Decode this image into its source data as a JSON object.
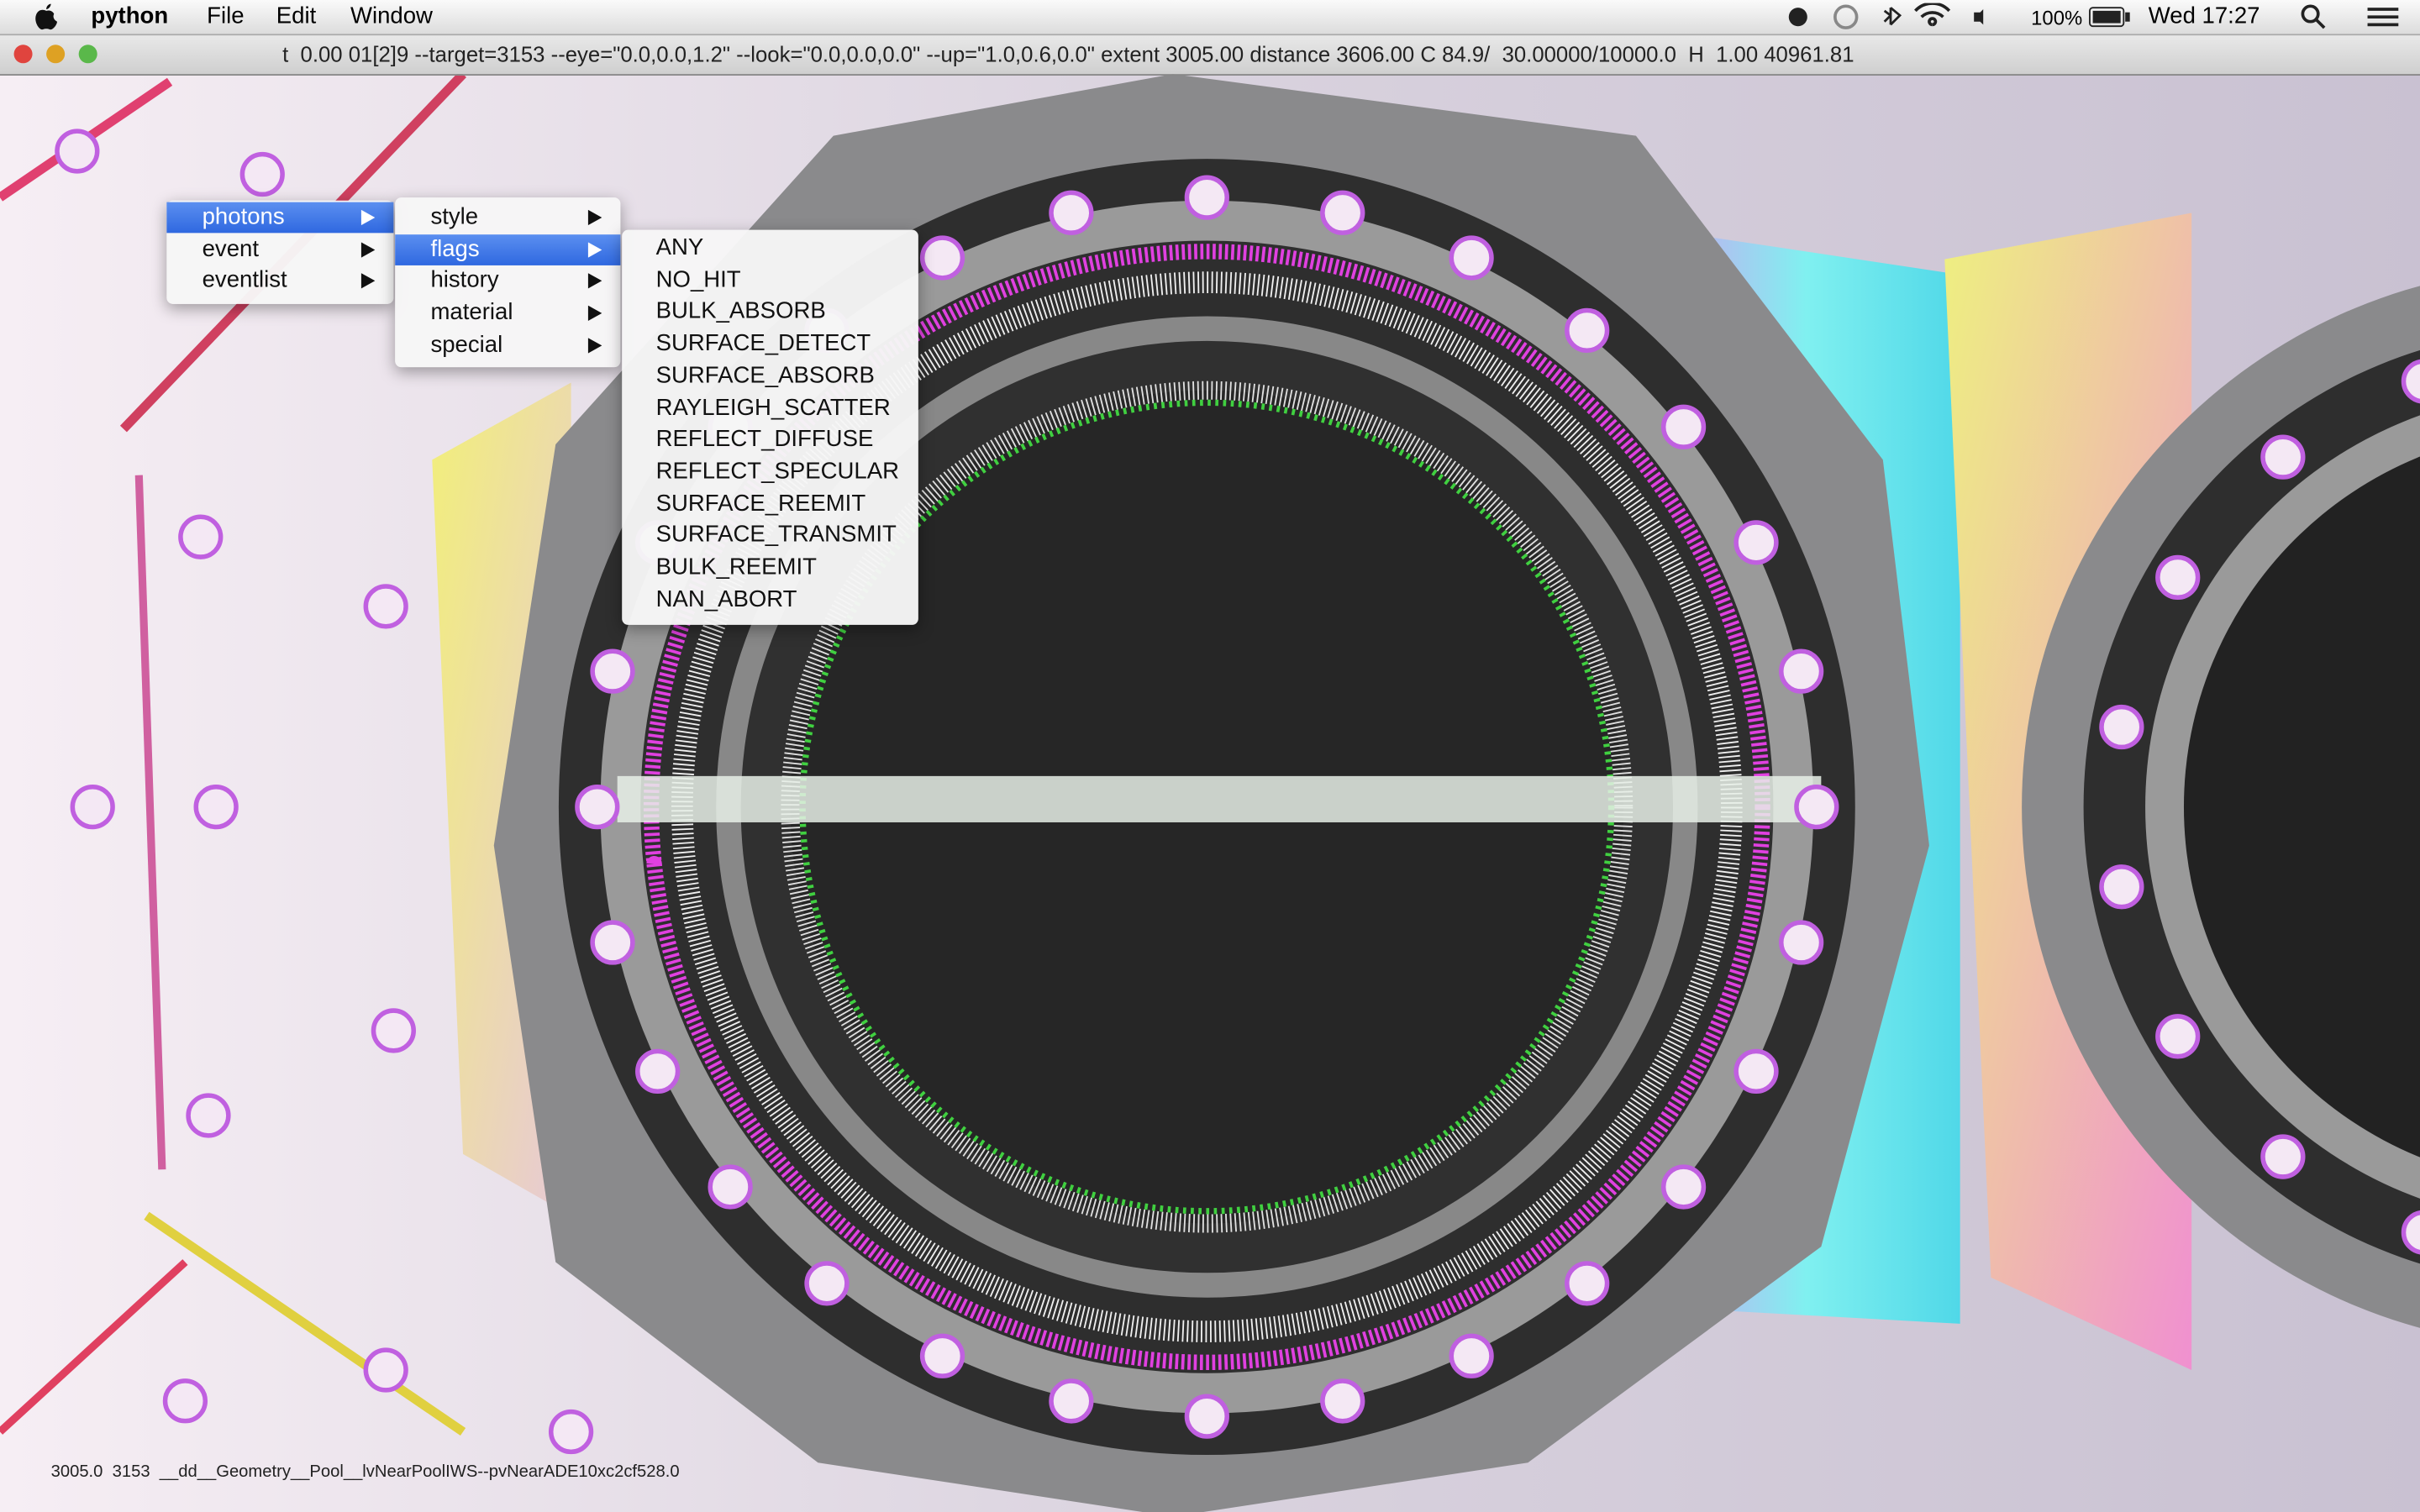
{
  "menubar": {
    "app": "python",
    "menus": [
      "File",
      "Edit",
      "Window"
    ],
    "battery": "100%",
    "clock": "Wed 17:27"
  },
  "window": {
    "title": "t  0.00 01[2]9 --target=3153 --eye=\"0.0,0.0,1.2\" --look=\"0.0,0.0,0.0\" --up=\"1.0,0.6,0.0\" extent 3005.00 distance 3606.00 C 84.9/  30.00000/10000.0  H  1.00 40961.81",
    "status": "3005.0  3153  __dd__Geometry__Pool__lvNearPoolIWS--pvNearADE10xc2cf528.0"
  },
  "menus": {
    "level1": [
      "photons",
      "event",
      "eventlist"
    ],
    "level2": [
      "style",
      "flags",
      "history",
      "material",
      "special"
    ],
    "level3": [
      "ANY",
      "NO_HIT",
      "BULK_ABSORB",
      "SURFACE_DETECT",
      "SURFACE_ABSORB",
      "RAYLEIGH_SCATTER",
      "REFLECT_DIFFUSE",
      "REFLECT_SPECULAR",
      "SURFACE_REEMIT",
      "SURFACE_TRANSMIT",
      "BULK_REEMIT",
      "NAN_ABORT"
    ]
  }
}
